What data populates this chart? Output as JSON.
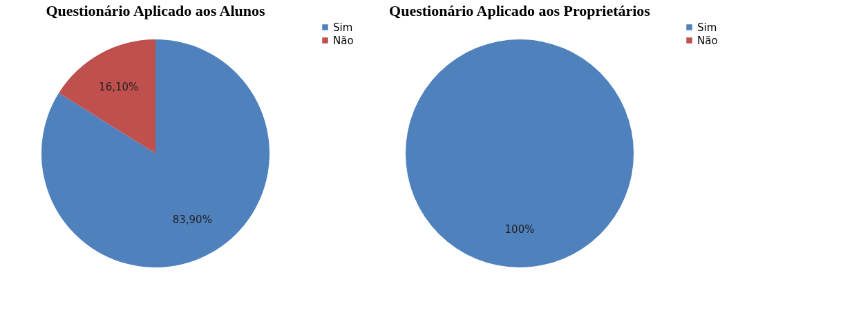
{
  "chart_data": [
    {
      "type": "pie",
      "title": "Questionário Aplicado aos Alunos",
      "categories": [
        "Sim",
        "Não"
      ],
      "values": [
        83.9,
        16.1
      ],
      "colors": [
        "#4f81bd",
        "#c0504d"
      ],
      "value_labels": [
        "83,90%",
        "16,10%"
      ],
      "legend": "right"
    },
    {
      "type": "pie",
      "title": "Questionário Aplicado aos Proprietários",
      "categories": [
        "Sim",
        "Não"
      ],
      "values": [
        100,
        0
      ],
      "colors": [
        "#4f81bd",
        "#c0504d"
      ],
      "value_labels": [
        "100%",
        null
      ],
      "legend": "right"
    }
  ]
}
